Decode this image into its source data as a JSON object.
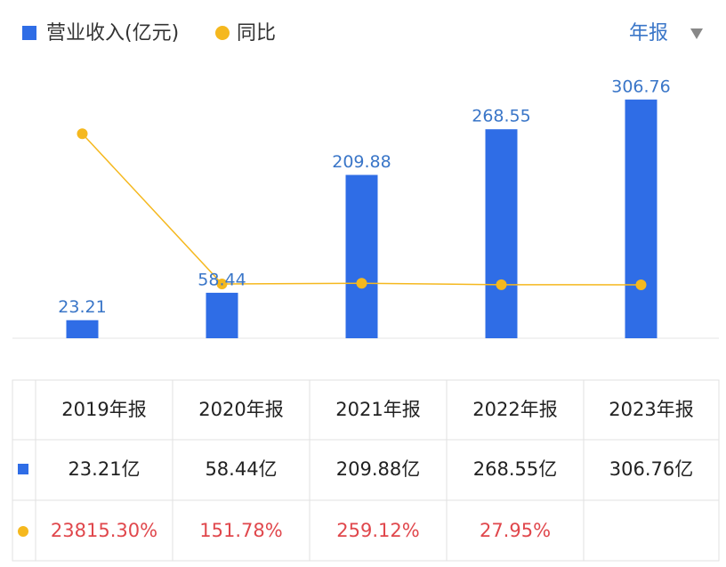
{
  "chart_data": {
    "type": "bar",
    "period_selector": "年报",
    "categories": [
      "2019年报",
      "2020年报",
      "2021年报",
      "2022年报",
      "2023年报"
    ],
    "series": [
      {
        "name": "营业收入(亿元)",
        "color": "#2f6de6",
        "values": [
          23.21,
          58.44,
          209.88,
          268.55,
          306.76
        ],
        "value_labels": [
          "23.21亿",
          "58.44亿",
          "209.88亿",
          "268.55亿",
          "306.76亿"
        ]
      },
      {
        "name": "同比",
        "type": "line",
        "axis": "y2",
        "color": "#f5b81e",
        "values": [
          23815.3,
          151.78,
          259.12,
          27.95,
          14.23
        ],
        "value_labels": [
          "23815.30%",
          "151.78%",
          "259.12%",
          "27.95%",
          null
        ]
      }
    ],
    "ylim": [
      0,
      350
    ],
    "y2lim": [
      -8400,
      34500
    ]
  }
}
